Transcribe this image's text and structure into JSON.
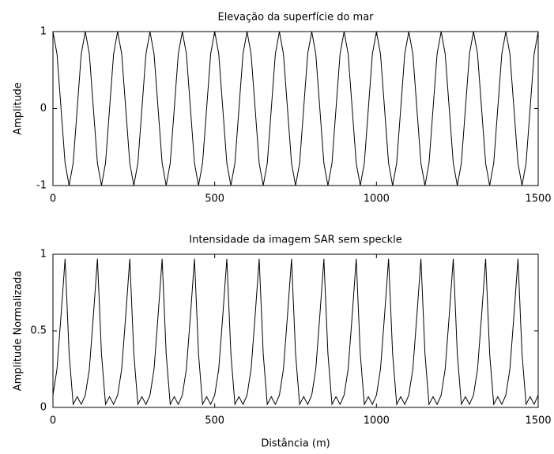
{
  "chart_data": [
    {
      "type": "line",
      "title": "Elevação da superfície do mar",
      "ylabel": "Amplitude",
      "color": "#000000",
      "x": [
        0,
        12.5,
        25,
        37.5,
        50,
        62.5,
        75,
        87.5,
        100,
        112.5,
        125,
        137.5,
        150,
        162.5,
        175,
        187.5,
        200,
        212.5,
        225,
        237.5,
        250,
        262.5,
        275,
        287.5,
        300,
        312.5,
        325,
        337.5,
        350,
        362.5,
        375,
        387.5,
        400,
        412.5,
        425,
        437.5,
        450,
        462.5,
        475,
        487.5,
        500,
        512.5,
        525,
        537.5,
        550,
        562.5,
        575,
        587.5,
        600,
        612.5,
        625,
        637.5,
        650,
        662.5,
        675,
        687.5,
        700,
        712.5,
        725,
        737.5,
        750,
        762.5,
        775,
        787.5,
        800,
        812.5,
        825,
        837.5,
        850,
        862.5,
        875,
        887.5,
        900,
        912.5,
        925,
        937.5,
        950,
        962.5,
        975,
        987.5,
        1000,
        1012.5,
        1025,
        1037.5,
        1050,
        1062.5,
        1075,
        1087.5,
        1100,
        1112.5,
        1125,
        1137.5,
        1150,
        1162.5,
        1175,
        1187.5,
        1200,
        1212.5,
        1225,
        1237.5,
        1250,
        1262.5,
        1275,
        1287.5,
        1300,
        1312.5,
        1325,
        1337.5,
        1350,
        1362.5,
        1375,
        1387.5,
        1400,
        1412.5,
        1425,
        1437.5,
        1450,
        1462.5,
        1475,
        1487.5,
        1500
      ],
      "values": [
        1,
        0.71,
        0,
        -0.71,
        -1,
        -0.71,
        0,
        0.71,
        1,
        0.71,
        0,
        -0.71,
        -1,
        -0.71,
        0,
        0.71,
        1,
        0.71,
        0,
        -0.71,
        -1,
        -0.71,
        0,
        0.71,
        1,
        0.71,
        0,
        -0.71,
        -1,
        -0.71,
        0,
        0.71,
        1,
        0.71,
        0,
        -0.71,
        -1,
        -0.71,
        0,
        0.71,
        1,
        0.71,
        0,
        -0.71,
        -1,
        -0.71,
        0,
        0.71,
        1,
        0.71,
        0,
        -0.71,
        -1,
        -0.71,
        0,
        0.71,
        1,
        0.71,
        0,
        -0.71,
        -1,
        -0.71,
        0,
        0.71,
        1,
        0.71,
        0,
        -0.71,
        -1,
        -0.71,
        0,
        0.71,
        1,
        0.71,
        0,
        -0.71,
        -1,
        -0.71,
        0,
        0.71,
        1,
        0.71,
        0,
        -0.71,
        -1,
        -0.71,
        0,
        0.71,
        1,
        0.71,
        0,
        -0.71,
        -1,
        -0.71,
        0,
        0.71,
        1,
        0.71,
        0,
        -0.71,
        -1,
        -0.71,
        0,
        0.71,
        1,
        0.71,
        0,
        -0.71,
        -1,
        -0.71,
        0,
        0.71,
        1,
        0.71,
        0,
        -0.71,
        -1,
        -0.71,
        0,
        0.71,
        1
      ],
      "xlim": [
        0,
        1500
      ],
      "xticks": [
        0,
        500,
        1000,
        1500
      ],
      "ylim": [
        -1,
        1
      ],
      "yticks": [
        -1,
        0,
        1
      ]
    },
    {
      "type": "line",
      "title": "Intensidade da imagem SAR sem speckle",
      "ylabel": "Amplitude Normalizada",
      "xlabel": "Distância (m)",
      "color": "#000000",
      "x": [
        0,
        12.5,
        25,
        37.5,
        50,
        62.5,
        75,
        87.5,
        100,
        112.5,
        125,
        137.5,
        150,
        162.5,
        175,
        187.5,
        200,
        212.5,
        225,
        237.5,
        250,
        262.5,
        275,
        287.5,
        300,
        312.5,
        325,
        337.5,
        350,
        362.5,
        375,
        387.5,
        400,
        412.5,
        425,
        437.5,
        450,
        462.5,
        475,
        487.5,
        500,
        512.5,
        525,
        537.5,
        550,
        562.5,
        575,
        587.5,
        600,
        612.5,
        625,
        637.5,
        650,
        662.5,
        675,
        687.5,
        700,
        712.5,
        725,
        737.5,
        750,
        762.5,
        775,
        787.5,
        800,
        812.5,
        825,
        837.5,
        850,
        862.5,
        875,
        887.5,
        900,
        912.5,
        925,
        937.5,
        950,
        962.5,
        975,
        987.5,
        1000,
        1012.5,
        1025,
        1037.5,
        1050,
        1062.5,
        1075,
        1087.5,
        1100,
        1112.5,
        1125,
        1137.5,
        1150,
        1162.5,
        1175,
        1187.5,
        1200,
        1212.5,
        1225,
        1237.5,
        1250,
        1262.5,
        1275,
        1287.5,
        1300,
        1312.5,
        1325,
        1337.5,
        1350,
        1362.5,
        1375,
        1387.5,
        1400,
        1412.5,
        1425,
        1437.5,
        1450,
        1462.5,
        1475,
        1487.5,
        1500
      ],
      "values": [
        0.08,
        0.25,
        0.6,
        0.97,
        0.35,
        0.02,
        0.07,
        0.02,
        0.08,
        0.25,
        0.6,
        0.97,
        0.35,
        0.02,
        0.07,
        0.02,
        0.08,
        0.25,
        0.6,
        0.97,
        0.35,
        0.02,
        0.07,
        0.02,
        0.08,
        0.25,
        0.6,
        0.97,
        0.35,
        0.02,
        0.07,
        0.02,
        0.08,
        0.25,
        0.6,
        0.97,
        0.35,
        0.02,
        0.07,
        0.02,
        0.08,
        0.25,
        0.6,
        0.97,
        0.35,
        0.02,
        0.07,
        0.02,
        0.08,
        0.25,
        0.6,
        0.97,
        0.35,
        0.02,
        0.07,
        0.02,
        0.08,
        0.25,
        0.6,
        0.97,
        0.35,
        0.02,
        0.07,
        0.02,
        0.08,
        0.25,
        0.6,
        0.97,
        0.35,
        0.02,
        0.07,
        0.02,
        0.08,
        0.25,
        0.6,
        0.97,
        0.35,
        0.02,
        0.07,
        0.02,
        0.08,
        0.25,
        0.6,
        0.97,
        0.35,
        0.02,
        0.07,
        0.02,
        0.08,
        0.25,
        0.6,
        0.97,
        0.35,
        0.02,
        0.07,
        0.02,
        0.08,
        0.25,
        0.6,
        0.97,
        0.35,
        0.02,
        0.07,
        0.02,
        0.08,
        0.25,
        0.6,
        0.97,
        0.35,
        0.02,
        0.07,
        0.02,
        0.08,
        0.25,
        0.6,
        0.97,
        0.35,
        0.02,
        0.07,
        0.02,
        0.08
      ],
      "xlim": [
        0,
        1500
      ],
      "xticks": [
        0,
        500,
        1000,
        1500
      ],
      "ylim": [
        0,
        1
      ],
      "yticks": [
        0,
        0.5,
        1
      ]
    }
  ]
}
